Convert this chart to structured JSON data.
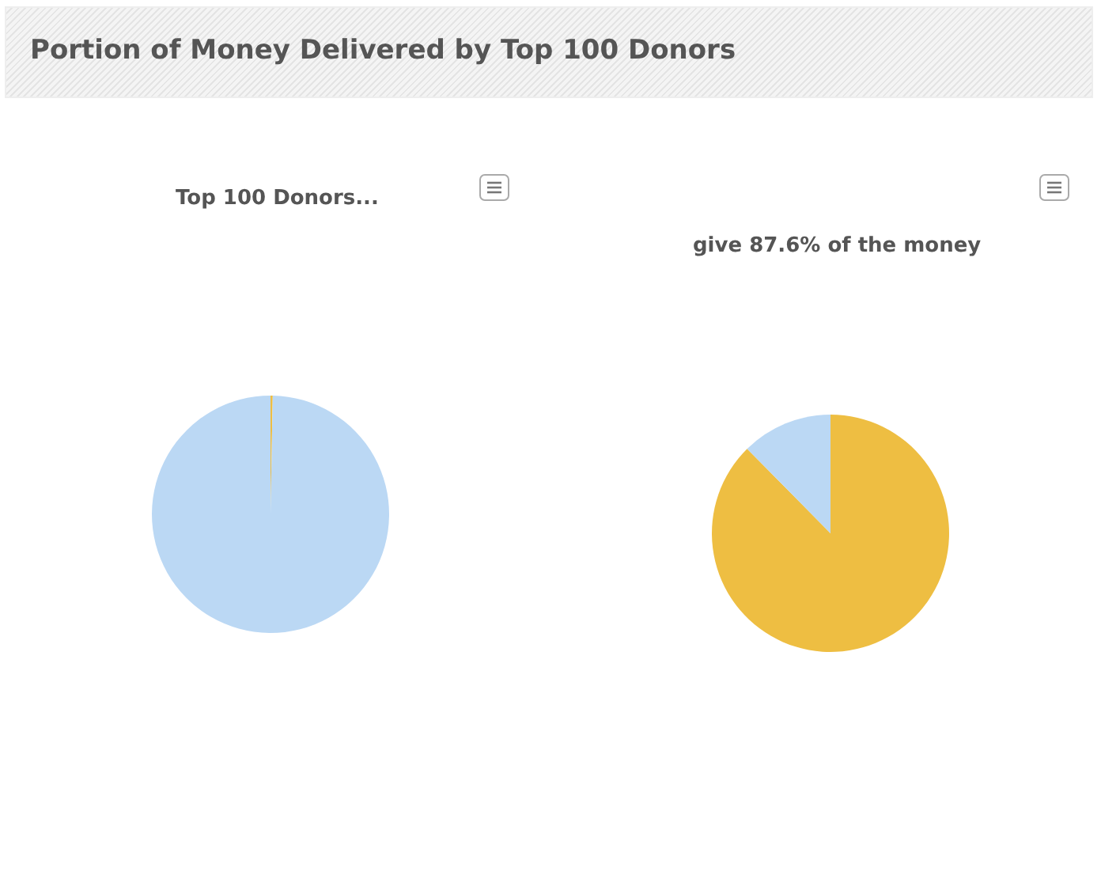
{
  "chart_data": [
    {
      "type": "pie",
      "title": "Portion of Money Delivered by Top 100 Donors",
      "subtitle": "Top 100 Donors...",
      "categories": [
        null,
        null
      ],
      "values": [
        0.3,
        99.7
      ],
      "colors": [
        "#eebe42",
        "#bbd8f4"
      ]
    },
    {
      "type": "pie",
      "title": "give 87.6% of the money",
      "categories": [
        null,
        null
      ],
      "values": [
        87.6,
        12.4
      ],
      "colors": [
        "#eebe42",
        "#bbd8f4"
      ]
    }
  ]
}
